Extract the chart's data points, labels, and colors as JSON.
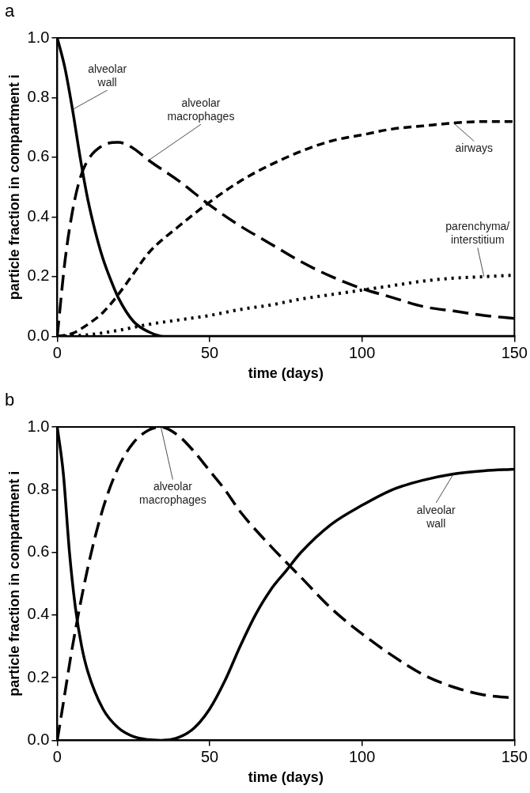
{
  "chart_data": [
    {
      "type": "line",
      "title": "a",
      "xlabel": "time (days)",
      "ylabel": "particle fraction in compartment i",
      "xlim": [
        0,
        150
      ],
      "ylim": [
        0,
        1
      ],
      "xticks": [
        0,
        50,
        100,
        150
      ],
      "yticks": [
        {
          "value": 0,
          "label": "0.0"
        },
        {
          "value": 0.2,
          "label": "0.2"
        },
        {
          "value": 0.4,
          "label": "0.4"
        },
        {
          "value": 0.6,
          "label": "0.6"
        },
        {
          "value": 0.8,
          "label": "0.8"
        },
        {
          "value": 1,
          "label": "1.0"
        }
      ],
      "grid": false,
      "marker": "none",
      "series": [
        {
          "name": "alveolar wall",
          "color": "#000000",
          "line_style": "solid",
          "x": [
            0,
            2.5,
            5,
            7.5,
            10,
            12.5,
            15,
            17.5,
            20,
            25,
            30,
            35,
            50,
            100,
            150
          ],
          "values": [
            1.0,
            0.9,
            0.76,
            0.6,
            0.46,
            0.35,
            0.26,
            0.19,
            0.13,
            0.05,
            0.015,
            0.0,
            0.0,
            0.0,
            0.0
          ]
        },
        {
          "name": "alveolar macrophages",
          "color": "#000000",
          "line_style": "dashed",
          "x": [
            0,
            2.5,
            5,
            7.5,
            10,
            15,
            20,
            25,
            30,
            40,
            50,
            60,
            70,
            80,
            90,
            100,
            110,
            120,
            130,
            140,
            150
          ],
          "values": [
            0,
            0.25,
            0.42,
            0.53,
            0.59,
            0.64,
            0.65,
            0.63,
            0.59,
            0.52,
            0.44,
            0.37,
            0.31,
            0.25,
            0.2,
            0.16,
            0.13,
            0.1,
            0.085,
            0.07,
            0.06
          ]
        },
        {
          "name": "airways",
          "color": "#000000",
          "line_style": "dashed",
          "x": [
            0,
            5,
            10,
            15,
            20,
            25,
            30,
            40,
            50,
            60,
            70,
            80,
            90,
            100,
            110,
            120,
            130,
            140,
            150
          ],
          "values": [
            0,
            0.01,
            0.04,
            0.08,
            0.14,
            0.21,
            0.28,
            0.37,
            0.45,
            0.52,
            0.575,
            0.62,
            0.655,
            0.675,
            0.695,
            0.705,
            0.715,
            0.72,
            0.72
          ]
        },
        {
          "name": "parenchyma/interstitium",
          "color": "#000000",
          "line_style": "dotted",
          "x": [
            0,
            10,
            20,
            30,
            40,
            50,
            60,
            70,
            80,
            90,
            100,
            110,
            120,
            130,
            140,
            150
          ],
          "values": [
            0,
            0.005,
            0.02,
            0.04,
            0.055,
            0.07,
            0.09,
            0.105,
            0.125,
            0.14,
            0.155,
            0.17,
            0.185,
            0.195,
            0.2,
            0.205
          ]
        }
      ]
    },
    {
      "type": "line",
      "title": "b",
      "xlabel": "time (days)",
      "ylabel": "particle fraction in compartment i",
      "xlim": [
        0,
        150
      ],
      "ylim": [
        0,
        1
      ],
      "xticks": [
        0,
        50,
        100,
        150
      ],
      "yticks": [
        {
          "value": 0,
          "label": "0.0"
        },
        {
          "value": 0.2,
          "label": "0.2"
        },
        {
          "value": 0.4,
          "label": "0.4"
        },
        {
          "value": 0.6,
          "label": "0.6"
        },
        {
          "value": 0.8,
          "label": "0.8"
        },
        {
          "value": 1,
          "label": "1.0"
        }
      ],
      "grid": false,
      "marker": "none",
      "series": [
        {
          "name": "alveolar wall",
          "color": "#000000",
          "line_style": "solid",
          "x": [
            0,
            2,
            4,
            6,
            8,
            10,
            15,
            20,
            25,
            30,
            34,
            40,
            45,
            50,
            55,
            60,
            65,
            70,
            75,
            80,
            90,
            100,
            110,
            120,
            130,
            140,
            150
          ],
          "values": [
            1.0,
            0.85,
            0.6,
            0.42,
            0.3,
            0.22,
            0.1,
            0.04,
            0.012,
            0.002,
            0,
            0.01,
            0.04,
            0.1,
            0.19,
            0.3,
            0.4,
            0.48,
            0.54,
            0.6,
            0.69,
            0.75,
            0.8,
            0.83,
            0.85,
            0.86,
            0.865
          ]
        },
        {
          "name": "alveolar macrophages",
          "color": "#000000",
          "line_style": "dashed",
          "x": [
            0,
            2,
            5,
            10,
            15,
            20,
            25,
            30,
            34,
            40,
            45,
            50,
            55,
            60,
            70,
            80,
            90,
            100,
            110,
            120,
            130,
            140,
            150
          ],
          "values": [
            0,
            0.12,
            0.3,
            0.55,
            0.74,
            0.87,
            0.95,
            0.99,
            1.0,
            0.97,
            0.92,
            0.86,
            0.8,
            0.73,
            0.62,
            0.52,
            0.42,
            0.34,
            0.27,
            0.21,
            0.17,
            0.145,
            0.135
          ]
        }
      ]
    }
  ]
}
